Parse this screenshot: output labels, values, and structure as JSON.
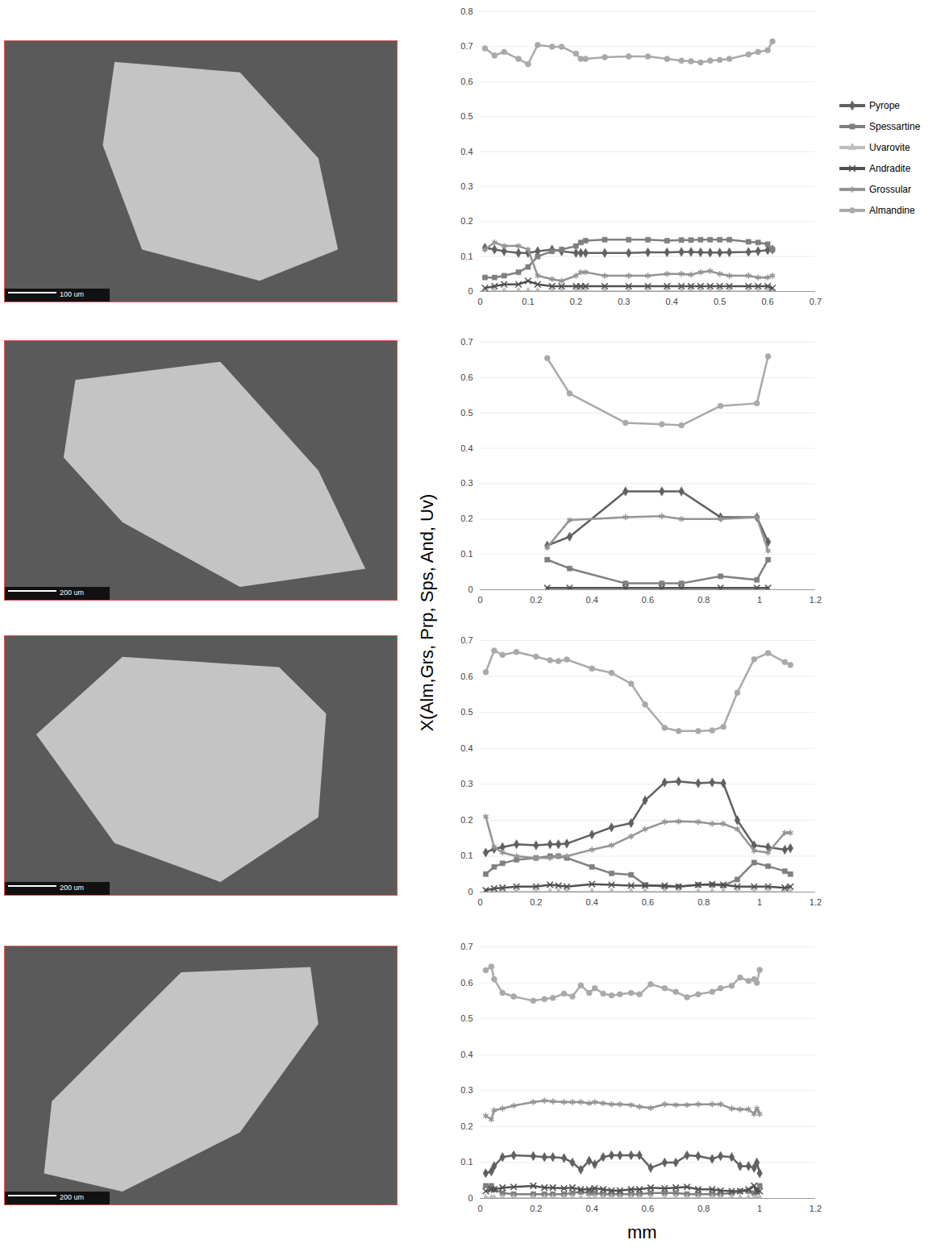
{
  "figure": {
    "ylabel": "X(Alm,Grs, Prp, Sps, And, Uv)",
    "xlabel": "mm",
    "legend": "right"
  },
  "images": [
    {
      "scale_bar": "100 um"
    },
    {
      "scale_bar": "200 um"
    },
    {
      "scale_bar": "200 um"
    },
    {
      "scale_bar": "200 um"
    }
  ],
  "chart_data": [
    {
      "type": "line",
      "grid": "y",
      "xlim": [
        0,
        0.7
      ],
      "xticks": [
        0,
        0.1,
        0.2,
        0.3,
        0.4,
        0.5,
        0.6,
        0.7
      ],
      "ylim": [
        0,
        0.8
      ],
      "yticks": [
        0,
        0.1,
        0.2,
        0.3,
        0.4,
        0.5,
        0.6,
        0.7,
        0.8
      ],
      "x": [
        0.01,
        0.03,
        0.05,
        0.08,
        0.1,
        0.12,
        0.15,
        0.17,
        0.2,
        0.21,
        0.22,
        0.26,
        0.31,
        0.35,
        0.39,
        0.42,
        0.44,
        0.46,
        0.48,
        0.5,
        0.52,
        0.56,
        0.58,
        0.6,
        0.61
      ],
      "series": [
        {
          "name": "Pyrope",
          "color": "#606060",
          "marker": "diamond",
          "values": [
            0.125,
            0.12,
            0.115,
            0.11,
            0.11,
            0.115,
            0.12,
            0.115,
            0.11,
            0.11,
            0.11,
            0.11,
            0.11,
            0.112,
            0.112,
            0.113,
            0.113,
            0.112,
            0.111,
            0.111,
            0.112,
            0.113,
            0.115,
            0.118,
            0.12
          ]
        },
        {
          "name": "Spessartine",
          "color": "#7f7f7f",
          "marker": "square",
          "values": [
            0.04,
            0.04,
            0.045,
            0.055,
            0.07,
            0.1,
            0.115,
            0.12,
            0.13,
            0.14,
            0.145,
            0.148,
            0.148,
            0.148,
            0.145,
            0.147,
            0.147,
            0.148,
            0.148,
            0.148,
            0.148,
            0.142,
            0.14,
            0.135,
            0.12
          ]
        },
        {
          "name": "Uvarovite",
          "color": "#bdbdbd",
          "marker": "triangle",
          "values": [
            0,
            0,
            0,
            0,
            0,
            0,
            0,
            0,
            0,
            0,
            0,
            0,
            0,
            0,
            0,
            0,
            0,
            0,
            0,
            0,
            0,
            0,
            0,
            0,
            0
          ]
        },
        {
          "name": "Andradite",
          "color": "#505050",
          "marker": "times",
          "values": [
            0.01,
            0.015,
            0.02,
            0.02,
            0.03,
            0.02,
            0.015,
            0.015,
            0.015,
            0.015,
            0.015,
            0.015,
            0.015,
            0.015,
            0.015,
            0.015,
            0.015,
            0.015,
            0.015,
            0.015,
            0.015,
            0.015,
            0.015,
            0.015,
            0.01
          ]
        },
        {
          "name": "Grossular",
          "color": "#949494",
          "marker": "asterisk",
          "values": [
            0.12,
            0.14,
            0.13,
            0.13,
            0.12,
            0.045,
            0.035,
            0.03,
            0.045,
            0.055,
            0.055,
            0.045,
            0.045,
            0.045,
            0.05,
            0.05,
            0.048,
            0.055,
            0.058,
            0.05,
            0.045,
            0.045,
            0.04,
            0.04,
            0.045
          ]
        },
        {
          "name": "Almandine",
          "color": "#a9a9a9",
          "marker": "circle",
          "values": [
            0.695,
            0.675,
            0.685,
            0.665,
            0.65,
            0.705,
            0.7,
            0.7,
            0.68,
            0.665,
            0.665,
            0.67,
            0.672,
            0.672,
            0.665,
            0.66,
            0.658,
            0.655,
            0.66,
            0.662,
            0.665,
            0.678,
            0.685,
            0.69,
            0.715
          ]
        }
      ]
    },
    {
      "type": "line",
      "grid": "y",
      "xlim": [
        0,
        1.2
      ],
      "xticks": [
        0,
        0.2,
        0.4,
        0.6,
        0.8,
        1,
        1.2
      ],
      "ylim": [
        0,
        0.7
      ],
      "yticks": [
        0,
        0.1,
        0.2,
        0.3,
        0.4,
        0.5,
        0.6,
        0.7
      ],
      "x": [
        0.24,
        0.32,
        0.52,
        0.65,
        0.72,
        0.86,
        0.99,
        1.03
      ],
      "series": [
        {
          "name": "Pyrope",
          "color": "#606060",
          "marker": "diamond",
          "values": [
            0.125,
            0.15,
            0.278,
            0.278,
            0.278,
            0.205,
            0.205,
            0.135
          ]
        },
        {
          "name": "Spessartine",
          "color": "#7f7f7f",
          "marker": "square",
          "values": [
            0.085,
            0.06,
            0.018,
            0.018,
            0.018,
            0.038,
            0.028,
            0.085
          ]
        },
        {
          "name": "Uvarovite",
          "color": "#bdbdbd",
          "marker": "triangle",
          "values": [
            0,
            0,
            0,
            0,
            0,
            0,
            0,
            0
          ]
        },
        {
          "name": "Andradite",
          "color": "#505050",
          "marker": "times",
          "values": [
            0.005,
            0.005,
            0.005,
            0.005,
            0.005,
            0.005,
            0.005,
            0.005
          ]
        },
        {
          "name": "Grossular",
          "color": "#949494",
          "marker": "asterisk",
          "values": [
            0.12,
            0.197,
            0.205,
            0.208,
            0.2,
            0.2,
            0.205,
            0.11
          ]
        },
        {
          "name": "Almandine",
          "color": "#a9a9a9",
          "marker": "circle",
          "values": [
            0.655,
            0.555,
            0.472,
            0.468,
            0.465,
            0.52,
            0.527,
            0.66
          ]
        }
      ]
    },
    {
      "type": "line",
      "grid": "y",
      "xlim": [
        0,
        1.2
      ],
      "xticks": [
        0,
        0.2,
        0.4,
        0.6,
        0.8,
        1,
        1.2
      ],
      "ylim": [
        0,
        0.7
      ],
      "yticks": [
        0,
        0.1,
        0.2,
        0.3,
        0.4,
        0.5,
        0.6,
        0.7
      ],
      "x": [
        0.02,
        0.05,
        0.08,
        0.13,
        0.2,
        0.25,
        0.28,
        0.31,
        0.4,
        0.47,
        0.54,
        0.59,
        0.66,
        0.71,
        0.78,
        0.83,
        0.87,
        0.92,
        0.98,
        1.03,
        1.09,
        1.11
      ],
      "series": [
        {
          "name": "Pyrope",
          "color": "#606060",
          "marker": "diamond",
          "values": [
            0.11,
            0.12,
            0.125,
            0.133,
            0.13,
            0.133,
            0.133,
            0.135,
            0.16,
            0.18,
            0.192,
            0.255,
            0.305,
            0.308,
            0.303,
            0.305,
            0.303,
            0.2,
            0.13,
            0.125,
            0.118,
            0.122
          ]
        },
        {
          "name": "Spessartine",
          "color": "#7f7f7f",
          "marker": "square",
          "values": [
            0.05,
            0.07,
            0.08,
            0.09,
            0.095,
            0.1,
            0.1,
            0.095,
            0.07,
            0.052,
            0.048,
            0.02,
            0.015,
            0.015,
            0.02,
            0.02,
            0.018,
            0.035,
            0.082,
            0.072,
            0.058,
            0.05
          ]
        },
        {
          "name": "Uvarovite",
          "color": "#bdbdbd",
          "marker": "triangle",
          "values": [
            0,
            0,
            0,
            0,
            0,
            0,
            0,
            0,
            0,
            0,
            0,
            0,
            0,
            0,
            0,
            0,
            0,
            0,
            0,
            0,
            0,
            0
          ]
        },
        {
          "name": "Andradite",
          "color": "#505050",
          "marker": "times",
          "values": [
            0.005,
            0.01,
            0.012,
            0.015,
            0.015,
            0.02,
            0.018,
            0.015,
            0.022,
            0.02,
            0.018,
            0.018,
            0.018,
            0.015,
            0.02,
            0.022,
            0.02,
            0.015,
            0.015,
            0.015,
            0.012,
            0.015
          ]
        },
        {
          "name": "Grossular",
          "color": "#949494",
          "marker": "asterisk",
          "values": [
            0.21,
            0.125,
            0.11,
            0.1,
            0.095,
            0.095,
            0.1,
            0.1,
            0.118,
            0.13,
            0.155,
            0.175,
            0.195,
            0.197,
            0.195,
            0.19,
            0.19,
            0.175,
            0.115,
            0.11,
            0.165,
            0.165
          ]
        },
        {
          "name": "Almandine",
          "color": "#a9a9a9",
          "marker": "circle",
          "values": [
            0.612,
            0.672,
            0.66,
            0.668,
            0.655,
            0.645,
            0.643,
            0.647,
            0.622,
            0.61,
            0.58,
            0.522,
            0.457,
            0.448,
            0.448,
            0.45,
            0.46,
            0.555,
            0.648,
            0.665,
            0.64,
            0.632
          ]
        }
      ]
    },
    {
      "type": "line",
      "grid": "y",
      "xlim": [
        0,
        1.2
      ],
      "xticks": [
        0,
        0.2,
        0.4,
        0.6,
        0.8,
        1,
        1.2
      ],
      "ylim": [
        0,
        0.7
      ],
      "yticks": [
        0,
        0.1,
        0.2,
        0.3,
        0.4,
        0.5,
        0.6,
        0.7
      ],
      "x": [
        0.02,
        0.04,
        0.05,
        0.08,
        0.12,
        0.19,
        0.23,
        0.26,
        0.3,
        0.33,
        0.36,
        0.39,
        0.41,
        0.44,
        0.47,
        0.5,
        0.54,
        0.57,
        0.61,
        0.66,
        0.7,
        0.74,
        0.78,
        0.83,
        0.86,
        0.9,
        0.93,
        0.96,
        0.98,
        0.99,
        1.0
      ],
      "series": [
        {
          "name": "Pyrope",
          "color": "#606060",
          "marker": "diamond",
          "values": [
            0.07,
            0.075,
            0.09,
            0.115,
            0.12,
            0.118,
            0.115,
            0.115,
            0.112,
            0.1,
            0.08,
            0.105,
            0.095,
            0.115,
            0.12,
            0.12,
            0.12,
            0.12,
            0.085,
            0.1,
            0.1,
            0.12,
            0.118,
            0.11,
            0.118,
            0.115,
            0.09,
            0.09,
            0.085,
            0.1,
            0.07
          ]
        },
        {
          "name": "Spessartine",
          "color": "#7f7f7f",
          "marker": "square",
          "values": [
            0.035,
            0.035,
            0.025,
            0.015,
            0.012,
            0.012,
            0.012,
            0.012,
            0.012,
            0.015,
            0.018,
            0.015,
            0.015,
            0.012,
            0.012,
            0.012,
            0.012,
            0.012,
            0.015,
            0.015,
            0.015,
            0.012,
            0.012,
            0.012,
            0.012,
            0.015,
            0.02,
            0.02,
            0.015,
            0.018,
            0.035
          ]
        },
        {
          "name": "Uvarovite",
          "color": "#bdbdbd",
          "marker": "triangle",
          "values": [
            0,
            0,
            0,
            0,
            0,
            0,
            0,
            0,
            0,
            0,
            0,
            0,
            0,
            0,
            0,
            0,
            0,
            0,
            0,
            0,
            0,
            0,
            0,
            0,
            0,
            0,
            0,
            0,
            0,
            0,
            0
          ]
        },
        {
          "name": "Andradite",
          "color": "#505050",
          "marker": "times",
          "values": [
            0.02,
            0.025,
            0.025,
            0.03,
            0.032,
            0.035,
            0.03,
            0.03,
            0.028,
            0.03,
            0.025,
            0.025,
            0.028,
            0.025,
            0.022,
            0.022,
            0.025,
            0.025,
            0.03,
            0.028,
            0.03,
            0.032,
            0.025,
            0.025,
            0.022,
            0.02,
            0.02,
            0.025,
            0.035,
            0.02,
            0.02
          ]
        },
        {
          "name": "Grossular",
          "color": "#949494",
          "marker": "asterisk",
          "values": [
            0.23,
            0.22,
            0.245,
            0.25,
            0.258,
            0.268,
            0.272,
            0.27,
            0.268,
            0.268,
            0.268,
            0.265,
            0.268,
            0.265,
            0.262,
            0.262,
            0.26,
            0.255,
            0.252,
            0.262,
            0.26,
            0.26,
            0.262,
            0.262,
            0.262,
            0.25,
            0.248,
            0.248,
            0.235,
            0.25,
            0.235
          ]
        },
        {
          "name": "Almandine",
          "color": "#a9a9a9",
          "marker": "circle",
          "values": [
            0.635,
            0.645,
            0.61,
            0.572,
            0.562,
            0.55,
            0.555,
            0.558,
            0.57,
            0.562,
            0.593,
            0.572,
            0.585,
            0.57,
            0.565,
            0.568,
            0.572,
            0.568,
            0.596,
            0.585,
            0.575,
            0.56,
            0.568,
            0.575,
            0.585,
            0.592,
            0.615,
            0.605,
            0.61,
            0.6,
            0.636
          ]
        }
      ]
    }
  ]
}
